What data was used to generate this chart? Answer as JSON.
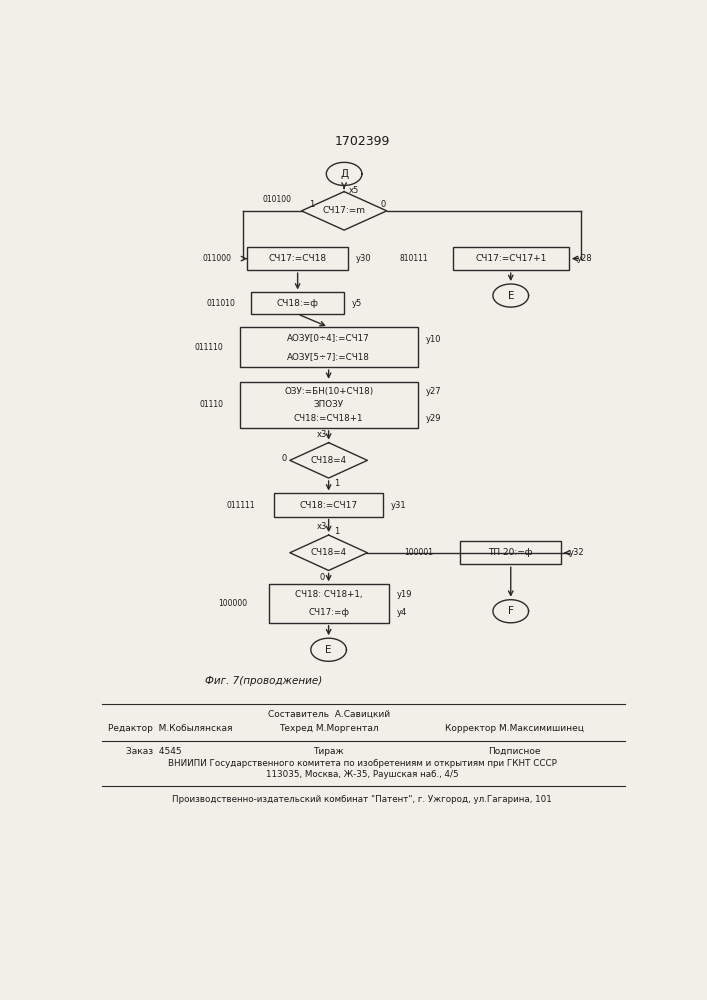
{
  "title": "1702399",
  "fig_caption": "Фиг. 7(проводжение)",
  "footer_line1": "Составитель  А.Савицкий",
  "footer_col1_label": "Редактор  М.Кобылянская",
  "footer_col2_label": "Техред М.Моргентал",
  "footer_col3_label": "Корректор М.Максимишинец",
  "footer2_col1": "Заказ  4545",
  "footer2_col2": "Тираж",
  "footer2_col3": "Подписное",
  "footer2_line2": "ВНИИПИ Государственного комитета по изобретениям и открытиям при ГКНТ СССР",
  "footer2_line3": "113035, Москва, Ж-35, Раушская наб., 4/5",
  "footer3": "Производственно-издательский комбинат \"Патент\", г. Ужгород, ул.Гагарина, 101",
  "bg_color": "#f2efe9",
  "line_color": "#2a2a2a",
  "text_color": "#1a1a1a"
}
